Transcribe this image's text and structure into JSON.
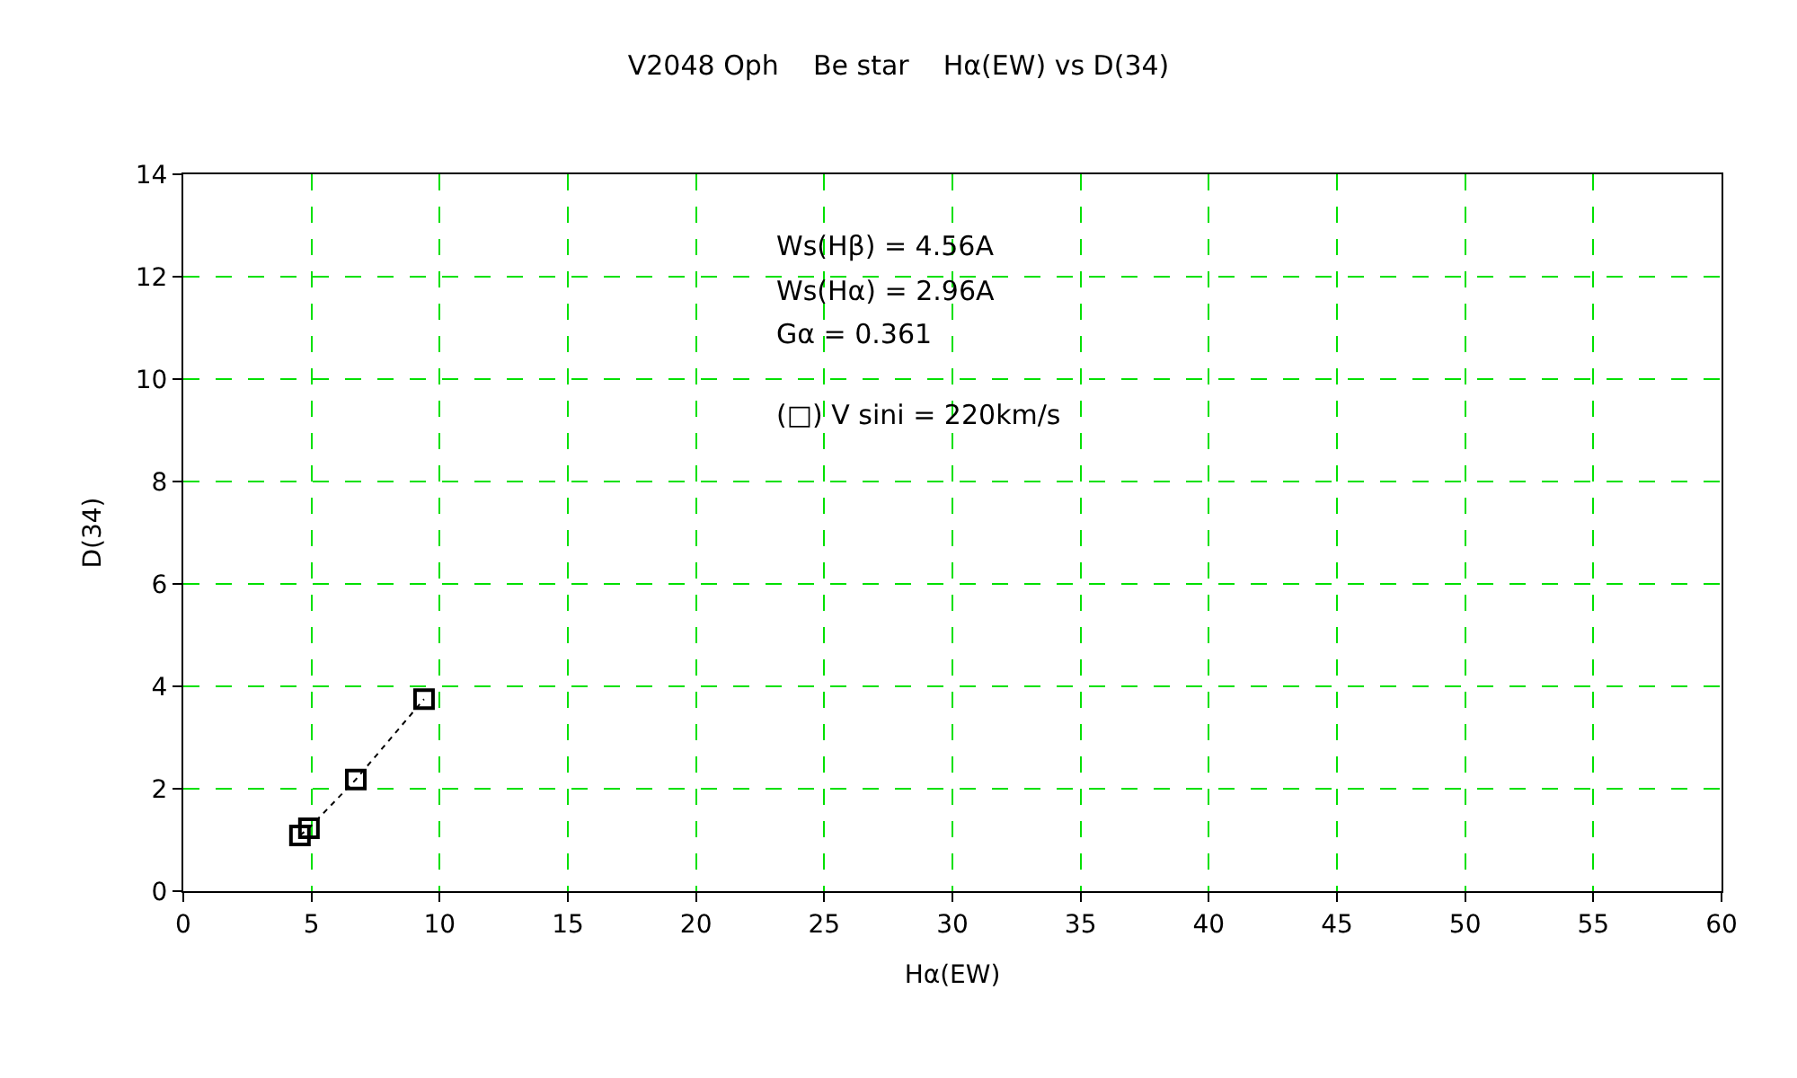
{
  "chart_data": {
    "type": "line",
    "title": "V2048 Oph    Be star    Hα(EW) vs D(34)",
    "xlabel": "Hα(EW)",
    "ylabel": "D(34)",
    "annotations": [
      "Ws(Hβ) = 4.56A",
      "Ws(Hα) = 2.96A",
      "Gα = 0.361",
      "(□) V sini = 220km/s"
    ],
    "series": [
      {
        "color": "#000000",
        "x": [
          4.55,
          4.9,
          6.73,
          9.39
        ],
        "values": [
          1.09,
          1.23,
          2.18,
          3.75
        ]
      }
    ],
    "xlim": [
      0,
      60
    ],
    "xticks": [
      0,
      5,
      10,
      15,
      20,
      25,
      30,
      35,
      40,
      45,
      50,
      55,
      60
    ],
    "ylim": [
      0,
      14
    ],
    "yticks": [
      0,
      2,
      4,
      6,
      8,
      10,
      12,
      14
    ],
    "grid": true,
    "legend": false,
    "marker": "square",
    "line_style": "dotted"
  }
}
